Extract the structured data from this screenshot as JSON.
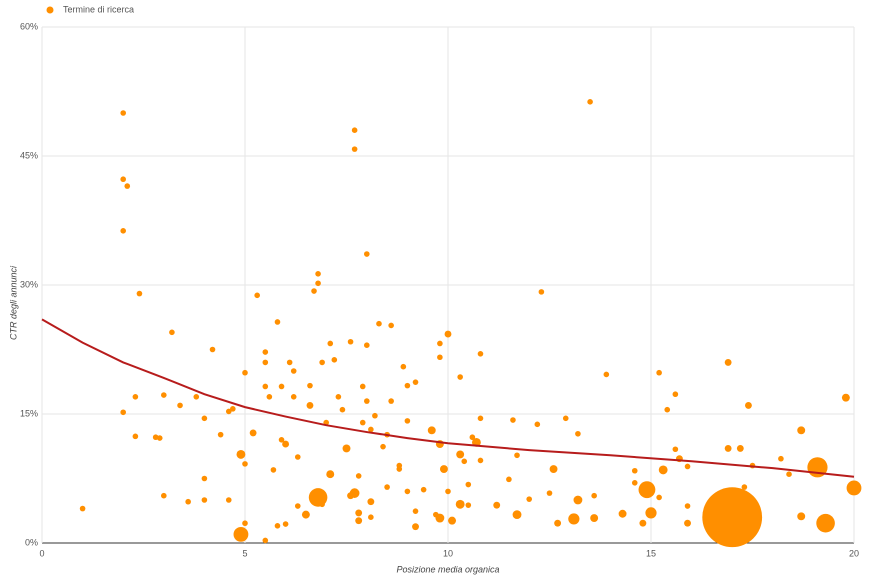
{
  "chart_data": {
    "type": "scatter",
    "x_label": "Posizione media organica",
    "y_label": "CTR degli annunci",
    "xlim": [
      0,
      20
    ],
    "xticks": [
      0,
      5,
      10,
      15,
      20
    ],
    "ylim": [
      0,
      60
    ],
    "yticks": [
      {
        "value": 0,
        "label": "0%"
      },
      {
        "value": 15,
        "label": "15%"
      },
      {
        "value": 30,
        "label": "30%"
      },
      {
        "value": 45,
        "label": "45%"
      },
      {
        "value": 60,
        "label": "60%"
      }
    ],
    "grid": true,
    "legend": "top-left",
    "series": [
      {
        "name": "Termine di ricerca",
        "color": "#ff8f00",
        "x": [
          1,
          2,
          2,
          2.1,
          2,
          2.4,
          2,
          2.3,
          2.3,
          2.8,
          2.9,
          3,
          3,
          3.2,
          3.4,
          3.6,
          3.8,
          4,
          4,
          4,
          4.2,
          4.4,
          4.6,
          4.7,
          4.6,
          4.9,
          4.9,
          5,
          5,
          5,
          5.2,
          5.3,
          5.5,
          5.5,
          5.5,
          5.6,
          5.5,
          5.7,
          5.8,
          5.8,
          5.9,
          5.9,
          6,
          6,
          6.1,
          6.2,
          6.2,
          6.3,
          6.3,
          6.5,
          6.6,
          6.6,
          6.7,
          6.8,
          6.8,
          6.8,
          6.9,
          6.9,
          7,
          7.1,
          7.1,
          7.2,
          7.3,
          7.4,
          7.5,
          7.6,
          7.6,
          7.7,
          7.7,
          7.7,
          7.8,
          7.8,
          7.8,
          7.9,
          7.9,
          8,
          8,
          8,
          8.1,
          8.1,
          8.1,
          8.2,
          8.3,
          8.4,
          8.5,
          8.5,
          8.6,
          8.6,
          8.8,
          8.8,
          8.9,
          9,
          9,
          9,
          9.2,
          9.2,
          9.2,
          9.4,
          9.6,
          9.7,
          9.8,
          9.8,
          9.8,
          9.8,
          9.9,
          10,
          10,
          10.1,
          10.3,
          10.3,
          10.3,
          10.4,
          10.5,
          10.5,
          10.6,
          10.7,
          10.8,
          10.8,
          10.8,
          11.2,
          11.5,
          11.6,
          11.7,
          11.7,
          12,
          12.2,
          12.3,
          12.5,
          12.6,
          12.7,
          12.9,
          13.1,
          13.2,
          13.2,
          13.5,
          13.6,
          13.6,
          13.9,
          14.3,
          14.6,
          14.6,
          14.8,
          14.9,
          15,
          15.2,
          15.2,
          15.3,
          15.4,
          15.6,
          15.6,
          15.7,
          15.9,
          15.9,
          15.9,
          16.9,
          16.9,
          17,
          17.2,
          17.3,
          17.4,
          17.5,
          18.2,
          18.4,
          18.7,
          18.7,
          19.1,
          19.3,
          19.8,
          20
        ],
        "values": [
          4,
          50,
          42.3,
          41.5,
          36.3,
          29,
          15.2,
          12.4,
          17,
          12.3,
          12.2,
          17.2,
          5.5,
          24.5,
          16,
          4.8,
          17,
          14.5,
          7.5,
          5,
          22.5,
          12.6,
          15.3,
          15.6,
          5,
          10.3,
          1,
          9.2,
          19.8,
          2.3,
          12.8,
          28.8,
          22.2,
          21,
          18.2,
          17,
          0.3,
          8.5,
          25.7,
          2,
          18.2,
          12,
          11.5,
          2.2,
          21,
          20,
          17,
          4.3,
          10,
          3.3,
          18.3,
          16,
          29.3,
          30.2,
          31.3,
          5.3,
          4.5,
          21,
          14,
          8,
          23.2,
          21.3,
          17,
          15.5,
          11,
          5.5,
          23.4,
          48,
          45.8,
          5.8,
          2.6,
          3.5,
          7.8,
          14,
          18.2,
          33.6,
          16.5,
          23,
          13.2,
          4.8,
          3,
          14.8,
          25.5,
          11.2,
          6.5,
          12.6,
          25.3,
          16.5,
          9,
          8.6,
          20.5,
          18.3,
          14.2,
          6,
          18.7,
          3.7,
          1.9,
          6.2,
          13.1,
          3.3,
          11.5,
          23.2,
          21.6,
          2.9,
          8.6,
          24.3,
          6,
          2.6,
          19.3,
          10.3,
          4.5,
          9.5,
          4.4,
          6.8,
          12.3,
          11.7,
          22,
          9.6,
          14.5,
          4.4,
          7.4,
          14.3,
          10.2,
          3.3,
          5.1,
          13.8,
          29.2,
          5.8,
          8.6,
          2.3,
          14.5,
          2.8,
          5,
          12.7,
          51.3,
          2.9,
          5.5,
          19.6,
          3.4,
          8.4,
          7,
          2.3,
          6.2,
          3.5,
          19.8,
          5.3,
          8.5,
          15.5,
          17.3,
          10.9,
          9.8,
          4.3,
          2.3,
          8.9,
          21,
          11,
          3,
          11,
          6.5,
          16,
          9,
          9.8,
          8,
          13.1,
          3.1,
          8.8,
          2.3,
          16.9,
          6.4
        ],
        "size": [
          1,
          1,
          1,
          1,
          1,
          1,
          1,
          1,
          1,
          1,
          1,
          1,
          1,
          1,
          1,
          1,
          1,
          1,
          1,
          1,
          1,
          1,
          1,
          1,
          1,
          2.5,
          7,
          1,
          1,
          1,
          1.5,
          1,
          1,
          1,
          1,
          1,
          1,
          1,
          1,
          1,
          1,
          1,
          1.5,
          1,
          1,
          1,
          1,
          1,
          1,
          2,
          1,
          1.5,
          1,
          1,
          1,
          11,
          1,
          1,
          1,
          2,
          1,
          1,
          1,
          1,
          2,
          1.5,
          1,
          1,
          1,
          3,
          1.5,
          1.5,
          1,
          1,
          1,
          1,
          1,
          1,
          1,
          1.5,
          1,
          1,
          1,
          1,
          1,
          1,
          1,
          1,
          1,
          1,
          1,
          1,
          1,
          1,
          1,
          1,
          1.5,
          1,
          2,
          1,
          2,
          1,
          1,
          2.5,
          2,
          1.5,
          1,
          2,
          1,
          2,
          2.5,
          1,
          1,
          1,
          1,
          2.5,
          1,
          1,
          1,
          1.5,
          1,
          1,
          1,
          2.5,
          1,
          1,
          1,
          1,
          2,
          1.5,
          1,
          4,
          2.5,
          1,
          1,
          2,
          1,
          1,
          2,
          1,
          1,
          1.5,
          9,
          4,
          1,
          1,
          2.5,
          1,
          1,
          1,
          1.5,
          1,
          1.5,
          1,
          1.5,
          1.5,
          114,
          1.5,
          1,
          1.5,
          1,
          1,
          1,
          2,
          2,
          13,
          11,
          2,
          7
        ]
      }
    ],
    "trendline": {
      "color": "#b71c1c",
      "x": [
        0,
        1,
        2,
        3,
        4,
        5,
        6,
        7,
        8,
        9,
        10,
        12,
        14,
        16,
        18,
        20
      ],
      "values": [
        26,
        23.3,
        21,
        19.2,
        17.3,
        15.8,
        14.7,
        13.7,
        12.9,
        12.2,
        11.6,
        10.8,
        10.2,
        9.5,
        8.7,
        7.7
      ]
    }
  }
}
